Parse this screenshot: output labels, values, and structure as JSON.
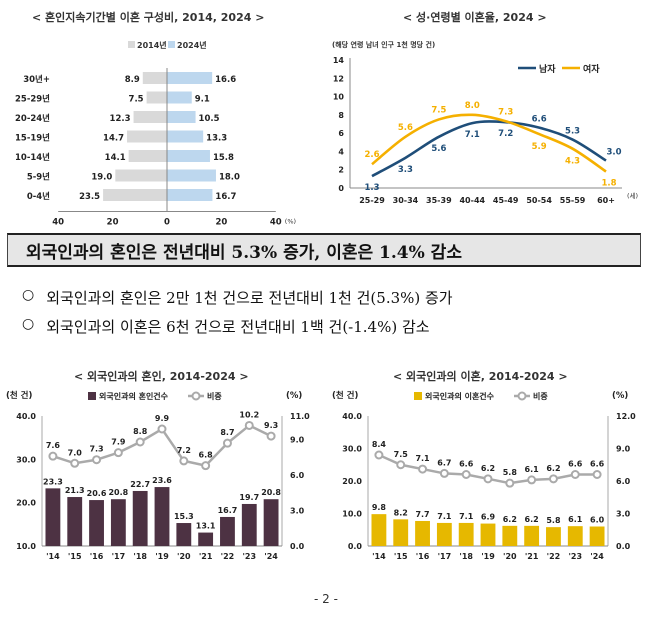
{
  "charts": {
    "divorce_duration": {
      "title": "< 혼인지속기간별 이혼 구성비, 2014, 2024 >",
      "legend": [
        "2014년",
        "2024년"
      ],
      "unit": "(%)",
      "tick_labels": [
        "40",
        "20",
        "0",
        "20",
        "40"
      ]
    },
    "age_sex": {
      "title": "< 성·연령별 이혼율, 2024 >",
      "ylabel": "(해당 연령 남녀 인구 1천 명당 건)",
      "unit": "(세)",
      "legend": [
        "남자",
        "여자"
      ]
    },
    "foreign_marriage": {
      "title": "< 외국인과의 혼인, 2014-2024 >",
      "left_unit": "(천 건)",
      "right_unit": "(%)",
      "legend": [
        "외국인과의 혼인건수",
        "비중"
      ]
    },
    "foreign_divorce": {
      "title": "< 외국인과의 이혼, 2014-2024 >",
      "left_unit": "(천 건)",
      "right_unit": "(%)",
      "legend": [
        "외국인과의 이혼건수",
        "비중"
      ]
    }
  },
  "headline": "외국인과의 혼인은 전년대비 5.3% 증가, 이혼은 1.4% 감소",
  "bullets": [
    "외국인과의 혼인은 2만 1천 건으로 전년대비 1천 건(5.3%) 증가",
    "외국인과의 이혼은 6천 건으로 전년대비 1백 건(-1.4%) 감소"
  ],
  "bullet_mark": "○",
  "page_number": "- 2 -",
  "colors": {
    "bar_2014": "#d9d9d9",
    "bar_2024": "#bdd7ee",
    "male": "#1f4e79",
    "female": "#f5b000",
    "marriage_bar": "#4d3243",
    "divorce_bar": "#e6b800",
    "share_line": "#aaaaaa"
  },
  "chart_data": [
    {
      "type": "bar",
      "orientation": "horizontal",
      "categories": [
        "30년+",
        "25-29년",
        "20-24년",
        "15-19년",
        "10-14년",
        "5-9년",
        "0-4년"
      ],
      "series": [
        {
          "name": "2014년",
          "values": [
            8.9,
            7.5,
            12.3,
            14.7,
            14.1,
            19.0,
            23.5
          ]
        },
        {
          "name": "2024년",
          "values": [
            16.6,
            9.1,
            10.5,
            13.3,
            15.8,
            18.0,
            16.7
          ]
        }
      ],
      "xlim": [
        -40,
        40
      ],
      "xlabel": "(%)"
    },
    {
      "type": "line",
      "categories": [
        "25-29",
        "30-34",
        "35-39",
        "40-44",
        "45-49",
        "50-54",
        "55-59",
        "60+"
      ],
      "series": [
        {
          "name": "남자",
          "values": [
            1.3,
            3.3,
            5.6,
            7.1,
            7.2,
            6.6,
            5.3,
            3.0
          ]
        },
        {
          "name": "여자",
          "values": [
            2.6,
            5.6,
            7.5,
            8.0,
            7.3,
            5.9,
            4.3,
            1.8
          ]
        }
      ],
      "ylim": [
        0,
        14
      ],
      "yticks": [
        0,
        2,
        4,
        6,
        8,
        10,
        12,
        14
      ],
      "ylabel": "(해당 연령 남녀 인구 1천 명당 건)",
      "xlabel": "(세)",
      "legend_position": "top-right"
    },
    {
      "type": "bar",
      "categories": [
        "'14",
        "'15",
        "'16",
        "'17",
        "'18",
        "'19",
        "'20",
        "'21",
        "'22",
        "'23",
        "'24"
      ],
      "series": [
        {
          "name": "외국인과의 혼인건수",
          "values": [
            23.3,
            21.3,
            20.6,
            20.8,
            22.7,
            23.6,
            15.3,
            13.1,
            16.7,
            19.7,
            20.8
          ],
          "axis": "left"
        },
        {
          "name": "비중",
          "type": "line",
          "values": [
            7.6,
            7.0,
            7.3,
            7.9,
            8.8,
            9.9,
            7.2,
            6.8,
            8.7,
            10.2,
            9.3
          ],
          "axis": "right"
        }
      ],
      "ylim": [
        10.0,
        40.0
      ],
      "yticks": [
        "10.0",
        "20.0",
        "30.0",
        "40.0"
      ],
      "y2lim": [
        0.0,
        11.0
      ],
      "y2ticks": [
        "0.0",
        "3.0",
        "6.0",
        "9.0",
        "11.0"
      ],
      "ylabel": "(천 건)",
      "y2label": "(%)"
    },
    {
      "type": "bar",
      "categories": [
        "'14",
        "'15",
        "'16",
        "'17",
        "'18",
        "'19",
        "'20",
        "'21",
        "'22",
        "'23",
        "'24"
      ],
      "series": [
        {
          "name": "외국인과의 이혼건수",
          "values": [
            9.8,
            8.2,
            7.7,
            7.1,
            7.1,
            6.9,
            6.2,
            6.2,
            5.8,
            6.1,
            6.0
          ],
          "axis": "left"
        },
        {
          "name": "비중",
          "type": "line",
          "values": [
            8.4,
            7.5,
            7.1,
            6.7,
            6.6,
            6.2,
            5.8,
            6.1,
            6.2,
            6.6,
            6.6
          ],
          "axis": "right"
        }
      ],
      "ylim": [
        0.0,
        40.0
      ],
      "yticks": [
        "0.0",
        "10.0",
        "20.0",
        "30.0",
        "40.0"
      ],
      "y2lim": [
        0.0,
        12.0
      ],
      "y2ticks": [
        "0.0",
        "3.0",
        "6.0",
        "9.0",
        "12.0"
      ],
      "ylabel": "(천 건)",
      "y2label": "(%)"
    }
  ]
}
